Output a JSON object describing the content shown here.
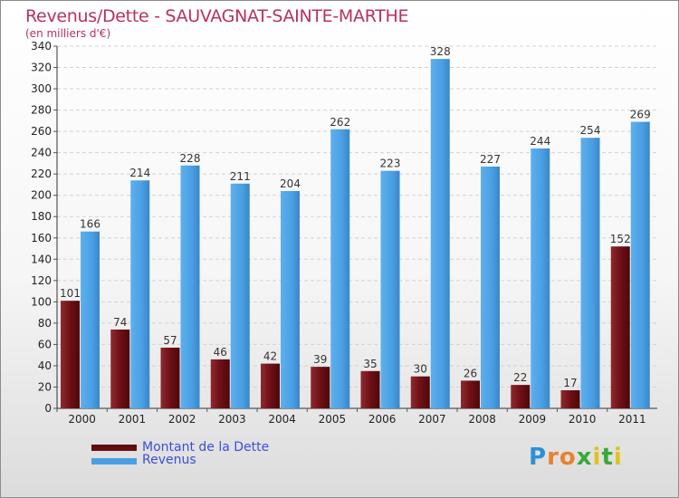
{
  "chart_data": {
    "type": "bar",
    "title": "Revenus/Dette - SAUVAGNAT-SAINTE-MARTHE",
    "subtitle": "(en milliers d'€)",
    "categories": [
      "2000",
      "2001",
      "2002",
      "2003",
      "2004",
      "2005",
      "2006",
      "2007",
      "2008",
      "2009",
      "2010",
      "2011"
    ],
    "series": [
      {
        "name": "Montant de la Dette",
        "color": "#7a1218",
        "values": [
          101,
          74,
          57,
          46,
          42,
          39,
          35,
          30,
          26,
          22,
          17,
          152
        ]
      },
      {
        "name": "Revenus",
        "color": "#4a9fe3",
        "values": [
          166,
          214,
          228,
          211,
          204,
          262,
          223,
          328,
          227,
          244,
          254,
          269
        ]
      }
    ],
    "ylim": [
      0,
      340
    ],
    "yticks": [
      0,
      20,
      40,
      60,
      80,
      100,
      120,
      140,
      160,
      180,
      200,
      220,
      240,
      260,
      280,
      300,
      320,
      340
    ],
    "grid": true,
    "legend": "bottom-left"
  },
  "legend": {
    "debt_label": "Montant de la Dette",
    "revenue_label": "Revenus",
    "debt_color": "#6b0f14",
    "revenue_color": "#4a9fe3"
  },
  "logo": {
    "letters": [
      "P",
      "r",
      "o",
      "x",
      "i",
      "t",
      "i"
    ],
    "colors": [
      "#2f8fd6",
      "#e8822c",
      "#e8822c",
      "#3aa83a",
      "#e2c21c",
      "#3aa83a",
      "#e2c21c"
    ]
  }
}
